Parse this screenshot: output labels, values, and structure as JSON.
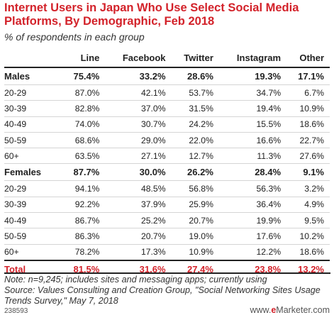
{
  "title": "Internet Users in Japan Who Use Select Social Media Platforms, By Demographic, Feb 2018",
  "subtitle": "% of respondents in each group",
  "chart_data": {
    "type": "table",
    "columns": [
      "",
      "Line",
      "Facebook",
      "Twitter",
      "Instagram",
      "Other"
    ],
    "rows": [
      {
        "label": "Males",
        "kind": "group",
        "values": [
          "75.4%",
          "33.2%",
          "28.6%",
          "19.3%",
          "17.1%"
        ]
      },
      {
        "label": "20-29",
        "kind": "sub",
        "values": [
          "87.0%",
          "42.1%",
          "53.7%",
          "34.7%",
          "6.7%"
        ]
      },
      {
        "label": "30-39",
        "kind": "sub",
        "values": [
          "82.8%",
          "37.0%",
          "31.5%",
          "19.4%",
          "10.9%"
        ]
      },
      {
        "label": "40-49",
        "kind": "sub",
        "values": [
          "74.0%",
          "30.7%",
          "24.2%",
          "15.5%",
          "18.6%"
        ]
      },
      {
        "label": "50-59",
        "kind": "sub",
        "values": [
          "68.6%",
          "29.0%",
          "22.0%",
          "16.6%",
          "22.7%"
        ]
      },
      {
        "label": "60+",
        "kind": "sub",
        "values": [
          "63.5%",
          "27.1%",
          "12.7%",
          "11.3%",
          "27.6%"
        ]
      },
      {
        "label": "Females",
        "kind": "group",
        "values": [
          "87.7%",
          "30.0%",
          "26.2%",
          "28.4%",
          "9.1%"
        ]
      },
      {
        "label": "20-29",
        "kind": "sub",
        "values": [
          "94.1%",
          "48.5%",
          "56.8%",
          "56.3%",
          "3.2%"
        ]
      },
      {
        "label": "30-39",
        "kind": "sub",
        "values": [
          "92.2%",
          "37.9%",
          "25.9%",
          "36.4%",
          "4.9%"
        ]
      },
      {
        "label": "40-49",
        "kind": "sub",
        "values": [
          "86.7%",
          "25.2%",
          "20.7%",
          "19.9%",
          "9.5%"
        ]
      },
      {
        "label": "50-59",
        "kind": "sub",
        "values": [
          "86.3%",
          "20.7%",
          "19.0%",
          "17.6%",
          "10.2%"
        ]
      },
      {
        "label": "60+",
        "kind": "sub",
        "values": [
          "78.2%",
          "17.3%",
          "10.9%",
          "12.2%",
          "18.6%"
        ]
      },
      {
        "label": "Total",
        "kind": "total",
        "values": [
          "81.5%",
          "31.6%",
          "27.4%",
          "23.8%",
          "13.2%"
        ]
      }
    ]
  },
  "note": "Note: n=9,245; includes sites and messaging apps; currently using",
  "source": "Source: Values Consulting and Creation Group, \"Social Networking Sites Usage Trends Survey,\" May 7, 2018",
  "chart_id": "238593",
  "brand": {
    "prefix": "www.",
    "highlight": "e",
    "suffix": "Marketer.com"
  },
  "colors": {
    "accent": "#d3222a",
    "text": "#222222",
    "rule": "#d5d5d5"
  }
}
